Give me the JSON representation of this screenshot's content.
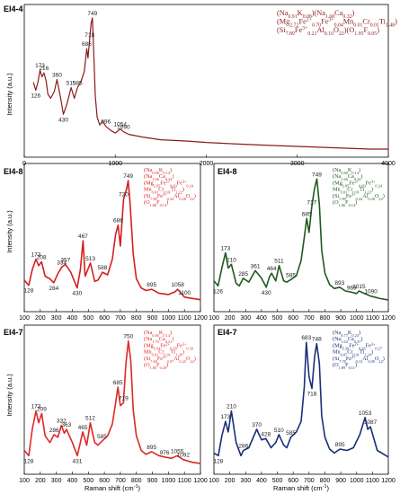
{
  "colors": {
    "top": "#8b1a1a",
    "mid_left": "#d42020",
    "mid_right": "#1f5a1f",
    "bot_left": "#e02727",
    "bot_right": "#1a2f7a"
  },
  "chart_data": [
    {
      "id": "top",
      "type": "line",
      "title": "El4-4",
      "xlabel": "",
      "ylabel": "Intensity (a.u.)",
      "xlim": [
        0,
        4000
      ],
      "xticks": [
        0,
        1000,
        2000,
        3000,
        4000
      ],
      "peak_labels": [
        "173",
        "216",
        "126",
        "360",
        "430",
        "515",
        "585",
        "686",
        "718",
        "749",
        "896",
        "1054",
        "1090"
      ],
      "formula": [
        "(Na0.91K0.08)(Na1.68Ca0.32)",
        "(Mg2.72Fe2+0.70Fe3+0.04Mn0.01Cr0.01Ti1.48)",
        "(Si7.89Fe3+0.21Al0.10O22)(O1.95F0.05)"
      ],
      "series": [
        {
          "x": [
            100,
            126,
            150,
            173,
            195,
            216,
            240,
            260,
            290,
            330,
            360,
            400,
            430,
            470,
            515,
            550,
            585,
            620,
            660,
            686,
            700,
            718,
            735,
            749,
            760,
            780,
            800,
            830,
            860,
            896,
            950,
            1000,
            1054,
            1090,
            1150,
            1300,
            1500,
            1800,
            2000,
            2300,
            2600,
            3000,
            3400,
            3800,
            4000
          ],
          "y": [
            5.2,
            4.6,
            5.2,
            6.1,
            5.6,
            5.9,
            5.3,
            4.3,
            4.0,
            4.5,
            5.4,
            4.0,
            2.8,
            3.6,
            4.8,
            4.0,
            4.8,
            5.2,
            6.0,
            7.7,
            7.0,
            8.4,
            9.6,
            10.0,
            8.0,
            4.2,
            2.6,
            2.0,
            2.3,
            1.9,
            1.6,
            1.4,
            1.7,
            1.5,
            1.3,
            1.1,
            0.9,
            0.8,
            0.7,
            0.6,
            0.5,
            0.4,
            0.3,
            0.2,
            0.2
          ]
        }
      ]
    },
    {
      "id": "mid_left",
      "type": "line",
      "title": "El4-8",
      "xlabel": "",
      "ylabel": "Intensity (a.u.)",
      "xlim": [
        100,
        1200
      ],
      "xticks": [
        100,
        200,
        300,
        400,
        500,
        600,
        700,
        800,
        900,
        1000,
        1100,
        1200
      ],
      "peak_labels": [
        "128",
        "173",
        "208",
        "284",
        "334",
        "357",
        "430",
        "467",
        "513",
        "588",
        "686",
        "720",
        "749",
        "895",
        "1058",
        "1100"
      ],
      "formula": [
        "(Na0.86K0.14)",
        "(Na1.66Ca0.34)",
        "(Mg2.85Fe2+0.69Fe3+0.24",
        "Mn0.01Cr0.01Ti1.22)",
        "(Si7.89Fe3+0.24Al0.28O22)",
        "(O1.86F0.14)"
      ],
      "series": [
        {
          "x": [
            100,
            128,
            150,
            173,
            190,
            208,
            230,
            260,
            284,
            310,
            334,
            357,
            390,
            430,
            450,
            467,
            480,
            513,
            540,
            560,
            588,
            620,
            650,
            670,
            686,
            700,
            720,
            740,
            749,
            760,
            780,
            800,
            830,
            860,
            895,
            940,
            1000,
            1040,
            1058,
            1080,
            1100,
            1150,
            1200
          ],
          "y": [
            2.0,
            1.6,
            2.8,
            3.6,
            3.1,
            3.4,
            2.3,
            2.1,
            1.8,
            2.5,
            3.0,
            3.2,
            2.6,
            1.4,
            2.8,
            5.0,
            2.3,
            3.3,
            1.9,
            2.0,
            2.6,
            2.4,
            3.6,
            5.5,
            6.2,
            4.6,
            8.2,
            9.0,
            9.6,
            8.0,
            4.0,
            2.1,
            1.4,
            1.2,
            1.3,
            1.0,
            0.9,
            1.1,
            1.3,
            1.0,
            0.7,
            0.6,
            0.5
          ]
        }
      ]
    },
    {
      "id": "mid_right",
      "type": "line",
      "title": "El4-8",
      "xlabel": "",
      "ylabel": "",
      "xlim": [
        100,
        1200
      ],
      "xticks": [
        100,
        200,
        300,
        400,
        500,
        600,
        700,
        800,
        900,
        1000,
        1100,
        1200
      ],
      "peak_labels": [
        "126",
        "173",
        "210",
        "285",
        "361",
        "430",
        "464",
        "511",
        "585",
        "685",
        "717",
        "749",
        "893",
        "969",
        "1015",
        "1090"
      ],
      "formula": [
        "(Na0.86K0.14)",
        "(Na1.66Ca0.34)",
        "(Mg2.85Fe2+0.69Fe3+0.24",
        "Mn0.01Cr0.01Ti1.22)",
        "(Si7.89Fe3+0.24Al0.28O22)",
        "(O1.86F0.14)"
      ],
      "series": [
        {
          "x": [
            100,
            126,
            150,
            173,
            190,
            210,
            240,
            260,
            285,
            320,
            361,
            400,
            430,
            450,
            464,
            490,
            511,
            540,
            560,
            585,
            620,
            650,
            670,
            685,
            700,
            717,
            735,
            749,
            765,
            780,
            800,
            830,
            860,
            893,
            930,
            969,
            1000,
            1015,
            1050,
            1090,
            1150,
            1200
          ],
          "y": [
            2.0,
            1.6,
            3.0,
            4.2,
            3.0,
            3.3,
            1.8,
            1.6,
            2.2,
            1.9,
            2.8,
            2.2,
            1.5,
            2.3,
            2.6,
            2.0,
            3.2,
            2.0,
            1.9,
            2.1,
            2.4,
            3.6,
            5.4,
            6.9,
            5.8,
            7.8,
            9.3,
            10.0,
            8.0,
            4.4,
            2.6,
            1.7,
            1.4,
            1.5,
            1.2,
            1.1,
            1.0,
            1.2,
            1.0,
            0.8,
            0.6,
            0.5
          ]
        }
      ]
    },
    {
      "id": "bot_left",
      "type": "line",
      "title": "El4-7",
      "xlabel": "Raman shift (cm-1)",
      "ylabel": "Intensity (a.u.)",
      "xlim": [
        100,
        1200
      ],
      "xticks": [
        100,
        200,
        300,
        400,
        500,
        600,
        700,
        800,
        900,
        1000,
        1100,
        1200
      ],
      "peak_labels": [
        "128",
        "173",
        "209",
        "286",
        "332",
        "363",
        "431",
        "465",
        "512",
        "585",
        "685",
        "719",
        "750",
        "895",
        "976",
        "1055",
        "1092"
      ],
      "formula": [
        "(Na0.86K0.14)",
        "(Na1.79Ca0.21)",
        "(Mg2.64Fe2+0.78Fe3+0.30",
        "Mn0.01Cr0.01Ti1.28)",
        "(Si7.68Fe3+0.07Al0.25O22)",
        "(O1.80F0.20)"
      ],
      "series": [
        {
          "x": [
            100,
            128,
            150,
            173,
            190,
            209,
            230,
            260,
            286,
            310,
            332,
            350,
            363,
            400,
            431,
            450,
            465,
            490,
            512,
            540,
            560,
            585,
            620,
            650,
            670,
            685,
            700,
            719,
            735,
            750,
            765,
            780,
            800,
            830,
            860,
            895,
            940,
            976,
            1020,
            1055,
            1092,
            1150,
            1200
          ],
          "y": [
            1.4,
            1.0,
            3.0,
            4.4,
            3.5,
            4.2,
            2.5,
            2.0,
            2.6,
            2.4,
            3.3,
            2.7,
            3.0,
            2.0,
            1.0,
            2.0,
            2.8,
            1.8,
            3.5,
            2.0,
            1.8,
            2.1,
            2.5,
            3.4,
            5.0,
            6.2,
            4.8,
            5.0,
            8.0,
            9.7,
            8.2,
            4.5,
            2.5,
            1.4,
            1.1,
            1.3,
            1.0,
            0.9,
            0.8,
            1.0,
            0.7,
            0.5,
            0.4
          ]
        }
      ]
    },
    {
      "id": "bot_right",
      "type": "line",
      "title": "El4-7",
      "xlabel": "Raman shift (cm-1)",
      "ylabel": "",
      "xlim": [
        100,
        1200
      ],
      "xticks": [
        100,
        200,
        300,
        400,
        500,
        600,
        700,
        800,
        900,
        1000,
        1100,
        1200
      ],
      "peak_labels": [
        "128",
        "173",
        "210",
        "286",
        "370",
        "428",
        "510",
        "585",
        "683",
        "718",
        "748",
        "895",
        "1053",
        "1087"
      ],
      "formula": [
        "(Na0.77K0.23)",
        "(Na1.63Ca0.37)",
        "(Mg2.36Fe2+0.26Fe3+0.27",
        "Mn0.07Cr0.01Ti1.24)",
        "(Si7.78Fe3+0.13Al0.09O22)",
        "(O1.89F0.11)"
      ],
      "series": [
        {
          "x": [
            100,
            128,
            150,
            173,
            190,
            210,
            240,
            270,
            286,
            320,
            370,
            400,
            428,
            460,
            490,
            510,
            540,
            560,
            585,
            620,
            650,
            670,
            683,
            700,
            718,
            735,
            748,
            765,
            780,
            800,
            830,
            860,
            895,
            940,
            980,
            1020,
            1053,
            1070,
            1087,
            1130,
            1200
          ],
          "y": [
            1.2,
            1.0,
            2.5,
            3.6,
            2.8,
            4.4,
            2.0,
            1.0,
            1.4,
            1.6,
            3.0,
            2.2,
            2.3,
            1.6,
            2.0,
            2.6,
            1.8,
            1.6,
            2.4,
            2.8,
            3.6,
            6.2,
            9.6,
            7.0,
            6.1,
            8.5,
            9.5,
            8.0,
            4.0,
            2.4,
            1.5,
            1.2,
            1.5,
            1.4,
            1.6,
            2.6,
            3.9,
            3.0,
            3.2,
            1.4,
            0.9
          ]
        }
      ]
    }
  ]
}
